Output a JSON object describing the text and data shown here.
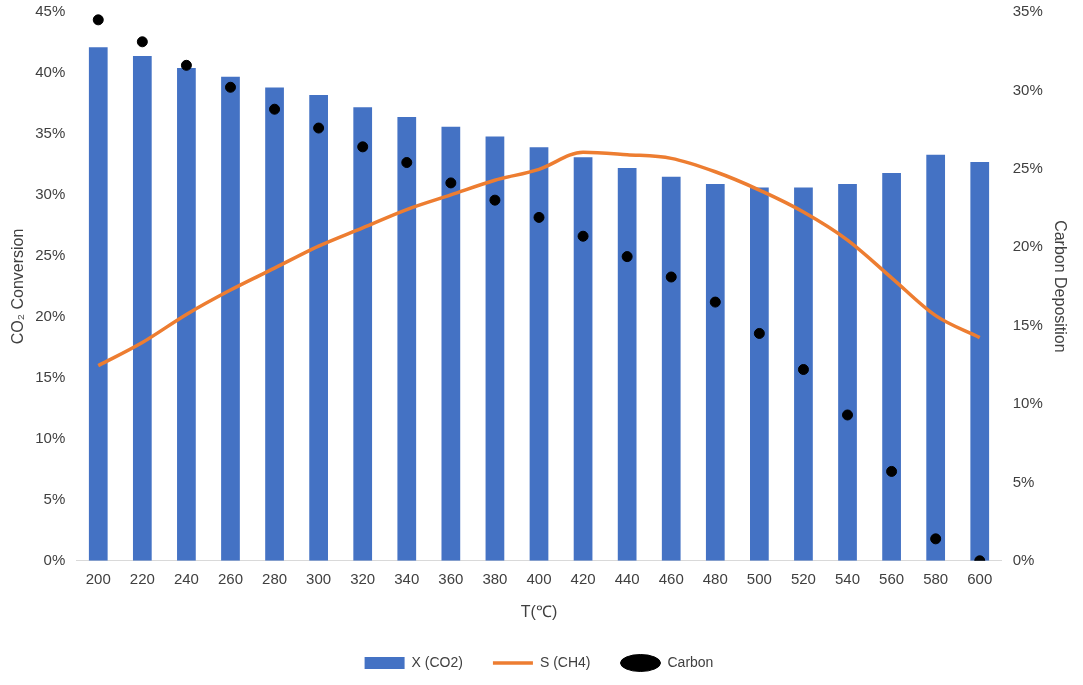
{
  "chart_data": {
    "type": "bar",
    "xlabel": "T(℃)",
    "ylabel": "CO₂ Conversion",
    "y2label": "Carbon Deposition",
    "categories": [
      "200",
      "220",
      "240",
      "260",
      "280",
      "300",
      "320",
      "340",
      "360",
      "380",
      "400",
      "420",
      "440",
      "460",
      "480",
      "500",
      "520",
      "540",
      "560",
      "580",
      "600"
    ],
    "series": [
      {
        "name": "X (CO2)",
        "color": "#4472c4",
        "values": [
          42.1,
          41.4,
          40.4,
          39.7,
          38.8,
          38.2,
          37.2,
          36.4,
          35.6,
          34.8,
          33.9,
          33.1,
          32.2,
          31.5,
          30.9,
          30.6,
          30.6,
          30.9,
          31.8,
          33.3,
          32.7
        ]
      },
      {
        "name": "S (CH4)",
        "type": "line",
        "color": "#ed7d31",
        "marker": "none",
        "values": [
          16.0,
          17.9,
          20.2,
          22.2,
          24.0,
          25.8,
          27.3,
          28.8,
          30.0,
          31.2,
          32.1,
          33.5,
          33.3,
          33.0,
          31.9,
          30.4,
          28.6,
          26.3,
          23.2,
          20.1,
          18.3
        ]
      },
      {
        "name": "Carbon",
        "type": "scatter",
        "axis": "y2",
        "color": "#000000",
        "marker": "circle",
        "x": [
          "200",
          "220",
          "240",
          "260",
          "280",
          "300",
          "320",
          "340",
          "360",
          "380",
          "400",
          "420",
          "440",
          "460",
          "480",
          "500",
          "520",
          "540",
          "560",
          "580",
          "600"
        ],
        "values": [
          34.5,
          33.1,
          31.6,
          30.2,
          28.8,
          27.6,
          26.4,
          25.4,
          24.1,
          23.0,
          21.9,
          20.7,
          19.4,
          18.1,
          16.5,
          14.5,
          12.2,
          9.3,
          5.7,
          1.4,
          0
        ]
      }
    ],
    "ylim": [
      0,
      45
    ],
    "yticks": [
      {
        "value": 0,
        "label": "0%"
      },
      {
        "value": 5,
        "label": "5%"
      },
      {
        "value": 10,
        "label": "10%"
      },
      {
        "value": 15,
        "label": "15%"
      },
      {
        "value": 20,
        "label": "20%"
      },
      {
        "value": 25,
        "label": "25%"
      },
      {
        "value": 30,
        "label": "30%"
      },
      {
        "value": 35,
        "label": "35%"
      },
      {
        "value": 40,
        "label": "40%"
      },
      {
        "value": 45,
        "label": "45%"
      }
    ],
    "y2lim": [
      0,
      35
    ],
    "y2ticks": [
      {
        "value": 0,
        "label": "0%"
      },
      {
        "value": 5,
        "label": "5%"
      },
      {
        "value": 10,
        "label": "10%"
      },
      {
        "value": 15,
        "label": "15%"
      },
      {
        "value": 20,
        "label": "20%"
      },
      {
        "value": 25,
        "label": "25%"
      },
      {
        "value": 30,
        "label": "30%"
      },
      {
        "value": 35,
        "label": "35%"
      }
    ],
    "grid": false,
    "legend": "bottom"
  }
}
